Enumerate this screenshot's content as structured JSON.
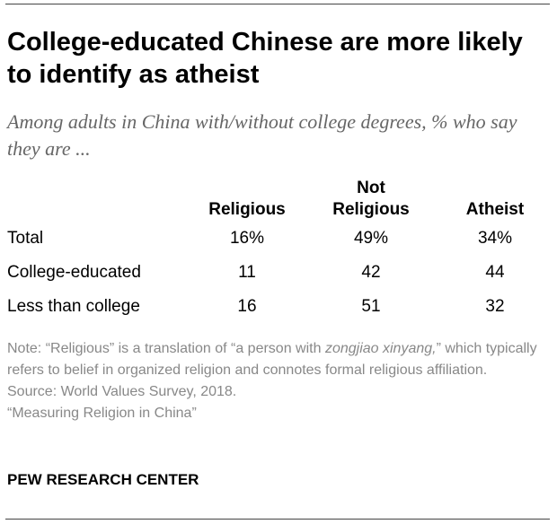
{
  "title": "College-educated Chinese are more likely to identify as atheist",
  "subtitle": "Among adults in China with/without college degrees, % who say they are ...",
  "chart_data": {
    "type": "table",
    "title": "College-educated Chinese are more likely to identify as atheist",
    "subtitle": "Among adults in China with/without college degrees, % who say they are ...",
    "columns": [
      "Religious",
      "Not Religious",
      "Atheist"
    ],
    "column_header_lines": [
      [
        "Religious"
      ],
      [
        "Not",
        "Religious"
      ],
      [
        "Atheist"
      ]
    ],
    "rows": [
      {
        "label": "Total",
        "display": [
          "16%",
          "49%",
          "34%"
        ],
        "values": [
          16,
          49,
          34
        ]
      },
      {
        "label": "College-educated",
        "display": [
          "11",
          "42",
          "44"
        ],
        "values": [
          11,
          42,
          44
        ]
      },
      {
        "label": "Less than college",
        "display": [
          "16",
          "51",
          "32"
        ],
        "values": [
          16,
          51,
          32
        ]
      }
    ],
    "unit": "%"
  },
  "notes": {
    "note_prefix": "Note: “Religious” is a translation of “a person with ",
    "note_italic": "zongjiao xinyang,",
    "note_suffix": "” which typically refers to belief in organized religion and connotes formal religious affiliation.",
    "source": "Source: World Values Survey, 2018.",
    "report": "“Measuring Religion in China”"
  },
  "org": "PEW RESEARCH CENTER",
  "colors": {
    "text": "#000000",
    "subtitle": "#666666",
    "notes": "#888888",
    "rule": "#444444"
  }
}
